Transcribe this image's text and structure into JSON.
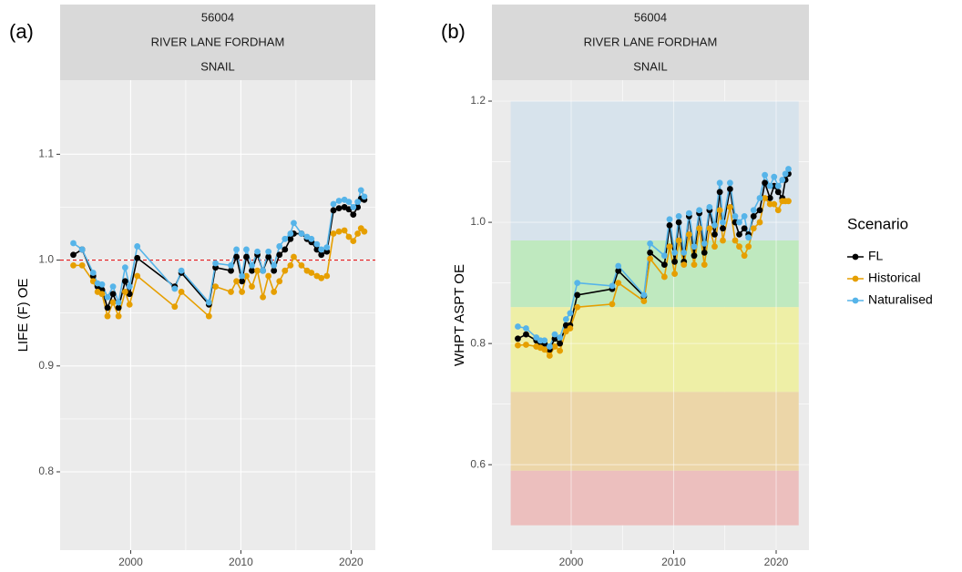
{
  "legend": {
    "title": "Scenario"
  },
  "chart_data": [
    {
      "type": "line",
      "panel_label": "(a)",
      "strip": [
        "56004",
        "RIVER LANE FORDHAM",
        "SNAIL"
      ],
      "y_label": "LIFE (F) OE",
      "xlim": [
        1993.6,
        2022.2
      ],
      "xticks": [
        2000,
        2010,
        2020
      ],
      "ylim": [
        0.726,
        1.17
      ],
      "yticks": [
        0.8,
        0.9,
        {
          "value": 1,
          "label": "1.0"
        },
        1.1
      ],
      "grid": true,
      "hline": {
        "value": 1,
        "color": "#e41a1c"
      },
      "x": [
        1994.8,
        1995.6,
        1996.6,
        1997.0,
        1997.4,
        1997.9,
        1998.4,
        1998.9,
        1999.5,
        1999.9,
        2000.6,
        2004.0,
        2004.6,
        2007.1,
        2007.7,
        2009.1,
        2009.6,
        2010.1,
        2010.5,
        2011.0,
        2011.5,
        2012.0,
        2012.5,
        2013.0,
        2013.5,
        2014.0,
        2014.5,
        2014.8,
        2015.5,
        2016.0,
        2016.4,
        2016.9,
        2017.3,
        2017.8,
        2018.4,
        2018.9,
        2019.4,
        2019.8,
        2020.2,
        2020.6,
        2020.9,
        2021.2
      ],
      "series": [
        {
          "name": "FL",
          "color": "#000000",
          "values": [
            1.005,
            1.01,
            0.985,
            0.975,
            0.972,
            0.955,
            0.968,
            0.955,
            0.98,
            0.968,
            1.002,
            0.975,
            0.988,
            0.958,
            0.993,
            0.99,
            1.003,
            0.98,
            1.003,
            0.99,
            1.005,
            0.99,
            1.003,
            0.99,
            1.005,
            1.01,
            1.02,
            1.025,
            1.025,
            1.02,
            1.017,
            1.01,
            1.005,
            1.008,
            1.047,
            1.049,
            1.05,
            1.048,
            1.043,
            1.05,
            1.058,
            1.057
          ]
        },
        {
          "name": "Historical",
          "color": "#E69F00",
          "values": [
            0.995,
            0.995,
            0.98,
            0.97,
            0.968,
            0.947,
            0.96,
            0.947,
            0.97,
            0.958,
            0.985,
            0.956,
            0.97,
            0.947,
            0.975,
            0.97,
            0.98,
            0.97,
            0.985,
            0.975,
            0.99,
            0.965,
            0.985,
            0.97,
            0.98,
            0.99,
            0.995,
            1.003,
            0.995,
            0.99,
            0.988,
            0.985,
            0.983,
            0.985,
            1.025,
            1.027,
            1.028,
            1.022,
            1.018,
            1.025,
            1.03,
            1.027
          ]
        },
        {
          "name": "Naturalised",
          "color": "#56B4E9",
          "values": [
            1.016,
            1.01,
            0.988,
            0.978,
            0.977,
            0.965,
            0.975,
            0.96,
            0.993,
            0.975,
            1.013,
            0.973,
            0.99,
            0.96,
            0.997,
            0.995,
            1.01,
            0.985,
            1.01,
            0.995,
            1.008,
            0.99,
            1.008,
            0.995,
            1.013,
            1.02,
            1.025,
            1.035,
            1.025,
            1.022,
            1.02,
            1.015,
            1.01,
            1.012,
            1.053,
            1.056,
            1.057,
            1.055,
            1.05,
            1.055,
            1.066,
            1.06
          ]
        }
      ]
    },
    {
      "type": "line",
      "panel_label": "(b)",
      "strip": [
        "56004",
        "RIVER LANE FORDHAM",
        "SNAIL"
      ],
      "y_label": "WHPT ASPT OE",
      "xlim": [
        1992.27,
        2023.2
      ],
      "xticks": [
        2000,
        2010,
        2020
      ],
      "ylim": [
        0.459,
        1.2346
      ],
      "yticks": [
        0.6,
        0.8,
        {
          "value": 1,
          "label": "1.0"
        },
        1.2
      ],
      "grid": true,
      "band_xlim": [
        1994.1,
        2022.2
      ],
      "bands": [
        {
          "ymin": 0.97,
          "ymax": 1.2,
          "color": "#d7e3ec"
        },
        {
          "ymin": 0.86,
          "ymax": 0.97,
          "color": "#bfe9bf"
        },
        {
          "ymin": 0.72,
          "ymax": 0.86,
          "color": "#eeefa6"
        },
        {
          "ymin": 0.59,
          "ymax": 0.72,
          "color": "#ecd6a8"
        },
        {
          "ymin": 0.5,
          "ymax": 0.59,
          "color": "#ecbfbe"
        }
      ],
      "x": [
        1994.8,
        1995.6,
        1996.6,
        1997.0,
        1997.4,
        1997.9,
        1998.4,
        1998.9,
        1999.5,
        1999.9,
        2000.6,
        2004.0,
        2004.6,
        2007.1,
        2007.7,
        2009.1,
        2009.6,
        2010.1,
        2010.5,
        2011.0,
        2011.5,
        2012.0,
        2012.5,
        2013.0,
        2013.5,
        2014.0,
        2014.5,
        2014.8,
        2015.5,
        2016.0,
        2016.4,
        2016.9,
        2017.3,
        2017.8,
        2018.4,
        2018.9,
        2019.4,
        2019.8,
        2020.2,
        2020.6,
        2020.9,
        2021.2
      ],
      "series": [
        {
          "name": "FL",
          "color": "#000000",
          "values": [
            0.808,
            0.815,
            0.805,
            0.8,
            0.8,
            0.79,
            0.808,
            0.8,
            0.83,
            0.83,
            0.88,
            0.89,
            0.92,
            0.878,
            0.95,
            0.93,
            0.995,
            0.935,
            1.0,
            0.935,
            1.01,
            0.945,
            1.015,
            0.95,
            1.02,
            0.98,
            1.05,
            0.99,
            1.055,
            1.0,
            0.98,
            0.99,
            0.98,
            1.01,
            1.02,
            1.065,
            1.04,
            1.06,
            1.05,
            1.04,
            1.07,
            1.08
          ]
        },
        {
          "name": "Historical",
          "color": "#E69F00",
          "values": [
            0.797,
            0.798,
            0.795,
            0.793,
            0.79,
            0.78,
            0.795,
            0.788,
            0.82,
            0.825,
            0.86,
            0.865,
            0.9,
            0.87,
            0.94,
            0.91,
            0.96,
            0.915,
            0.97,
            0.93,
            0.98,
            0.93,
            0.99,
            0.93,
            0.99,
            0.96,
            1.02,
            0.97,
            1.025,
            0.97,
            0.96,
            0.945,
            0.96,
            0.99,
            1.0,
            1.04,
            1.03,
            1.03,
            1.02,
            1.035,
            1.035,
            1.035
          ]
        },
        {
          "name": "Naturalised",
          "color": "#56B4E9",
          "values": [
            0.828,
            0.825,
            0.81,
            0.805,
            0.805,
            0.795,
            0.815,
            0.81,
            0.84,
            0.85,
            0.9,
            0.895,
            0.928,
            0.88,
            0.965,
            0.945,
            1.005,
            0.95,
            1.01,
            0.95,
            1.015,
            0.96,
            1.02,
            0.965,
            1.025,
            0.995,
            1.065,
            1.0,
            1.065,
            1.01,
            1.0,
            1.01,
            0.975,
            1.02,
            1.04,
            1.078,
            1.06,
            1.075,
            1.06,
            1.07,
            1.08,
            1.088
          ]
        }
      ]
    }
  ]
}
